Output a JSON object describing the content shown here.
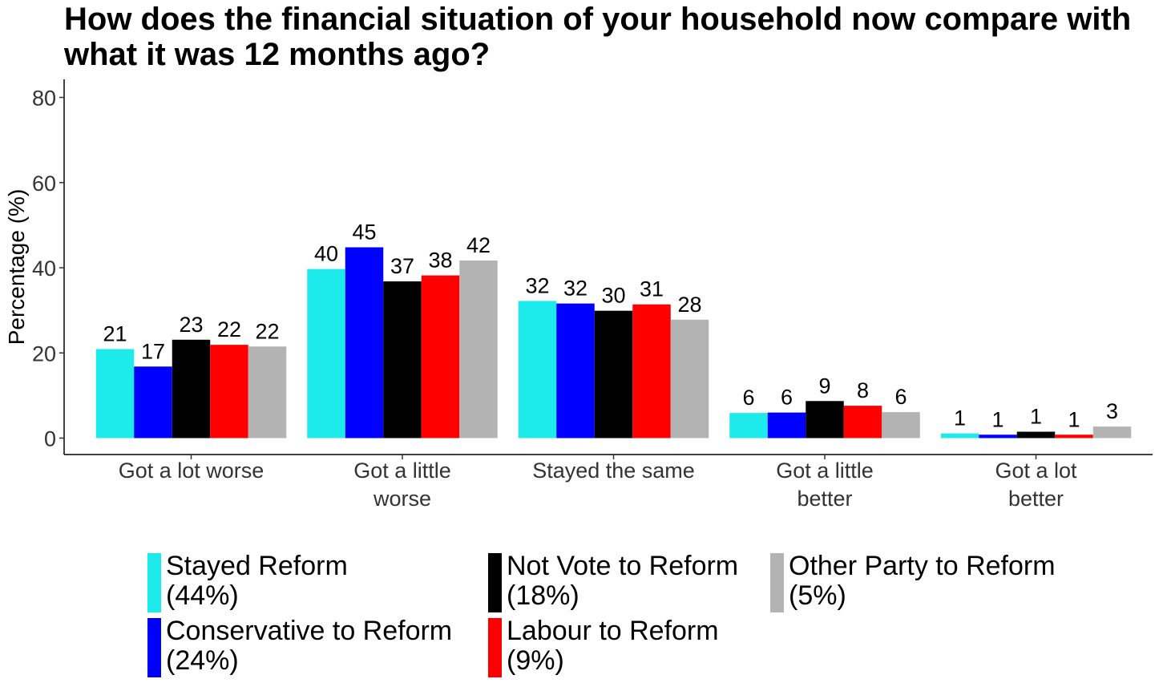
{
  "chart_data": {
    "type": "bar",
    "title": "How does the financial situation of your household now compare with what it was 12 months ago?",
    "xlabel": "",
    "ylabel": "Percentage (%)",
    "ylim": [
      0,
      84
    ],
    "yticks": [
      0,
      20,
      40,
      60,
      80
    ],
    "grid": false,
    "legend_position": "bottom",
    "categories": [
      "Got a lot worse",
      "Got a little\nworse",
      "Stayed the same",
      "Got a little\nbetter",
      "Got a lot\nbetter"
    ],
    "series": [
      {
        "name": "Stayed Reform\n(44%)",
        "color": "#1DEAEA",
        "values": [
          20.9,
          39.7,
          32.2,
          5.9,
          1.1
        ],
        "labels": [
          "21",
          "40",
          "32",
          "6",
          "1"
        ]
      },
      {
        "name": "Conservative to Reform\n(24%)",
        "color": "#0000FF",
        "values": [
          16.8,
          44.8,
          31.6,
          6.0,
          0.8
        ],
        "labels": [
          "17",
          "45",
          "32",
          "6",
          "1"
        ]
      },
      {
        "name": "Not Vote to Reform\n(18%)",
        "color": "#000000",
        "values": [
          23.1,
          36.8,
          29.9,
          8.7,
          1.5
        ],
        "labels": [
          "23",
          "37",
          "30",
          "9",
          "1"
        ]
      },
      {
        "name": "Labour to Reform\n(9%)",
        "color": "#FF0000",
        "values": [
          21.9,
          38.2,
          31.4,
          7.6,
          0.8
        ],
        "labels": [
          "22",
          "38",
          "31",
          "8",
          "1"
        ]
      },
      {
        "name": "Other Party to Reform\n(5%)",
        "color": "#B3B3B3",
        "values": [
          21.5,
          41.7,
          27.8,
          6.1,
          2.7
        ],
        "labels": [
          "22",
          "42",
          "28",
          "6",
          "3"
        ]
      }
    ]
  }
}
